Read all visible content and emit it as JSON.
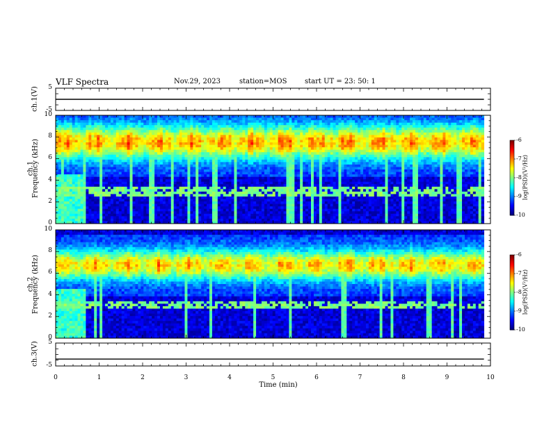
{
  "header": {
    "title": "VLF Spectra",
    "date": "Nov.29, 2023",
    "station": "station=MOS",
    "start": "start  UT =   23: 50: 1"
  },
  "chart_data": [
    {
      "type": "line",
      "panel": "ch.1 waveform",
      "ylabel": "ch.1(V)",
      "ylim": [
        -5,
        5
      ],
      "y_tick_labels": [
        "5",
        "-5"
      ],
      "x": [
        0,
        10
      ],
      "series": [
        {
          "values": [
            0,
            0
          ]
        }
      ]
    },
    {
      "type": "heatmap",
      "panel": "ch.1 spectrogram",
      "ylabel_channel": "ch.1",
      "ylabel": "Frequency (kHz)",
      "xlim": [
        0,
        10
      ],
      "ylim": [
        0,
        10
      ],
      "y_tick_labels": [
        "0",
        "2",
        "4",
        "6",
        "8",
        "10"
      ],
      "colorbar": {
        "label": "log(PSD)(V²/Hz)",
        "range": [
          -10,
          -6
        ],
        "tick_labels": [
          "-6",
          "-7",
          "-8",
          "-9",
          "-10"
        ]
      },
      "band_kHz": [
        5.5,
        9.5
      ],
      "band_peak_log_psd": -6.5,
      "low_band_kHz": [
        2.5,
        3.5
      ],
      "early_broadband_end_min": 0.65
    },
    {
      "type": "heatmap",
      "panel": "ch.2 spectrogram",
      "ylabel_channel": "ch.2",
      "ylabel": "Frequency (kHz)",
      "xlim": [
        0,
        10
      ],
      "ylim": [
        0,
        10
      ],
      "y_tick_labels": [
        "0",
        "2",
        "4",
        "6",
        "8",
        "10"
      ],
      "colorbar": {
        "label": "log(PSD)(V²/Hz)",
        "range": [
          -10,
          -6
        ],
        "tick_labels": [
          "-6",
          "-7",
          "-8",
          "-9",
          "-10"
        ]
      },
      "band_kHz": [
        5.0,
        8.5
      ],
      "band_peak_log_psd": -6.7,
      "low_band_kHz": [
        2.8,
        3.4
      ],
      "early_broadband_end_min": 0.65
    },
    {
      "type": "line",
      "panel": "ch.3 waveform",
      "ylabel": "ch.3(V)",
      "ylim": [
        -5,
        5
      ],
      "y_tick_labels": [
        "5",
        "-5"
      ],
      "x": [
        0,
        10
      ],
      "series": [
        {
          "values": [
            -2,
            -2
          ]
        }
      ]
    }
  ],
  "x_axis": {
    "label": "Time  (min)",
    "tick_labels": [
      "0",
      "1",
      "2",
      "3",
      "4",
      "5",
      "6",
      "7",
      "8",
      "9",
      "10"
    ],
    "data_end_min": 9.85
  }
}
